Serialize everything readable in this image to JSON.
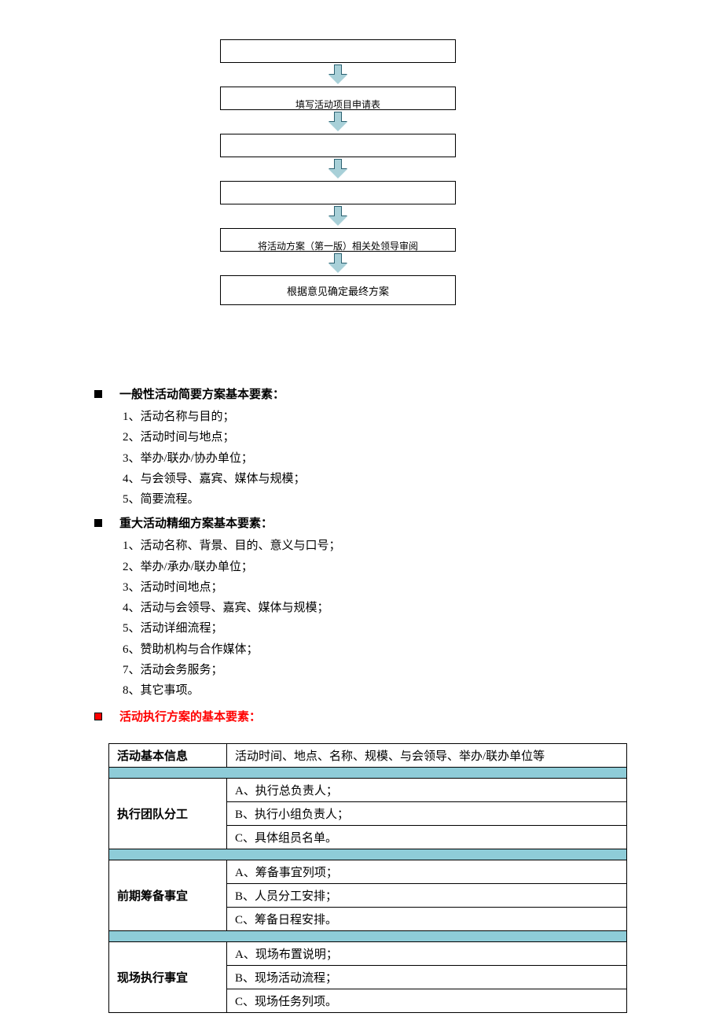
{
  "flowchart": {
    "box_border": "#000000",
    "arrow_fill": "#a8d0d8",
    "arrow_stroke": "#2a6070",
    "nodes": [
      {
        "text": "",
        "partial": true
      },
      {
        "text": "填写活动项目申请表",
        "partial": true
      },
      {
        "text": "",
        "partial": true
      },
      {
        "text": "",
        "partial": true
      },
      {
        "text": "将活动方案（第一版）相关处领导审阅",
        "partial": true
      },
      {
        "text": "根据意见确定最终方案",
        "partial": false
      }
    ]
  },
  "section1": {
    "heading": "一般性活动简要方案基本要素：",
    "items": [
      "1、活动名称与目的；",
      "2、活动时间与地点；",
      "3、举办/联办/协办单位；",
      "4、与会领导、嘉宾、媒体与规模；",
      "5、简要流程。"
    ]
  },
  "section2": {
    "heading": "重大活动精细方案基本要素：",
    "items": [
      "1、活动名称、背景、目的、意义与口号；",
      "2、举办/承办/联办单位；",
      "3、活动时间地点；",
      "4、活动与会领导、嘉宾、媒体与规模；",
      "5、活动详细流程；",
      "6、赞助机构与合作媒体；",
      "7、活动会务服务；",
      "8、其它事项。"
    ]
  },
  "section3": {
    "heading": "活动执行方案的基本要素：",
    "table": {
      "spacer_color": "#8eccd8",
      "groups": [
        {
          "label": "活动基本信息",
          "rows": [
            "活动时间、地点、名称、规模、与会领导、举办/联办单位等"
          ]
        },
        {
          "label": "执行团队分工",
          "rows": [
            "A、执行总负责人；",
            "B、执行小组负责人；",
            "C、具体组员名单。"
          ]
        },
        {
          "label": "前期筹备事宜",
          "rows": [
            "A、筹备事宜列项；",
            "B、人员分工安排；",
            "C、筹备日程安排。"
          ]
        },
        {
          "label": "现场执行事宜",
          "rows": [
            "A、现场布置说明；",
            "B、现场活动流程；",
            "C、现场任务列项。"
          ]
        }
      ]
    }
  }
}
